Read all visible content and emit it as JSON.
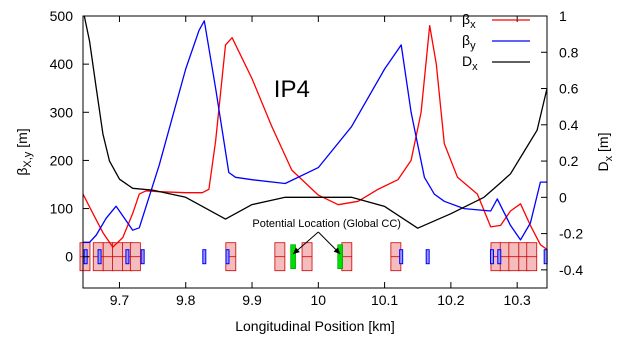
{
  "chart_data": {
    "type": "line",
    "annotation_label": "IP4",
    "xlabel": "Longitudinal Position [km]",
    "ylabel_left": {
      "main": "β",
      "sub": "X,y",
      "unit": " [m]"
    },
    "ylabel_right": {
      "main": "D",
      "sub": "x",
      "unit": " [m]"
    },
    "xlim": [
      9.645,
      10.345
    ],
    "ylim_left": [
      -65,
      500
    ],
    "ylim_right": [
      -0.5,
      1.0
    ],
    "x_ticks": [
      9.7,
      9.8,
      9.9,
      10.0,
      10.1,
      10.2,
      10.3
    ],
    "x_tick_labels": [
      "9.7",
      "9.8",
      "9.9",
      "10",
      "10.1",
      "10.2",
      "10.3"
    ],
    "y_left_ticks": [
      0,
      100,
      200,
      300,
      400,
      500
    ],
    "y_left_tick_labels": [
      "0",
      "100",
      "200",
      "300",
      "400",
      "500"
    ],
    "y_right_ticks": [
      -0.4,
      -0.2,
      0,
      0.2,
      0.4,
      0.6,
      0.8,
      1.0
    ],
    "y_right_tick_labels": [
      "-0.4",
      "-0.2",
      "0",
      "0.2",
      "0.4",
      "0.6",
      "0.8",
      "1"
    ],
    "grid": false,
    "legend_placement": "top-right",
    "series": [
      {
        "name": "β",
        "name_sub": "x",
        "color": "#ff0000",
        "axis": "left",
        "x": [
          9.645,
          9.66,
          9.675,
          9.69,
          9.705,
          9.72,
          9.73,
          9.74,
          9.76,
          9.8,
          9.825,
          9.835,
          9.845,
          9.86,
          9.87,
          9.9,
          9.93,
          9.96,
          10.0,
          10.03,
          10.06,
          10.09,
          10.12,
          10.14,
          10.155,
          10.168,
          10.178,
          10.19,
          10.21,
          10.24,
          10.26,
          10.275,
          10.29,
          10.305,
          10.32,
          10.335,
          10.345
        ],
        "y": [
          130,
          90,
          50,
          20,
          40,
          90,
          130,
          137,
          135,
          133,
          133,
          140,
          240,
          440,
          455,
          370,
          270,
          180,
          128,
          108,
          115,
          140,
          160,
          200,
          300,
          480,
          400,
          235,
          165,
          130,
          62,
          65,
          95,
          110,
          65,
          25,
          15
        ]
      },
      {
        "name": "β",
        "name_sub": "y",
        "color": "#0000ff",
        "axis": "left",
        "x": [
          9.645,
          9.655,
          9.665,
          9.68,
          9.695,
          9.71,
          9.72,
          9.73,
          9.76,
          9.8,
          9.82,
          9.828,
          9.845,
          9.865,
          9.875,
          9.9,
          9.95,
          10.0,
          10.05,
          10.1,
          10.12,
          10.125,
          10.14,
          10.16,
          10.175,
          10.19,
          10.22,
          10.26,
          10.27,
          10.29,
          10.305,
          10.32,
          10.335,
          10.345
        ],
        "y": [
          30,
          30,
          45,
          80,
          105,
          75,
          55,
          60,
          190,
          390,
          470,
          490,
          350,
          175,
          165,
          160,
          152,
          185,
          270,
          390,
          430,
          440,
          300,
          165,
          130,
          115,
          100,
          95,
          120,
          65,
          35,
          70,
          155,
          155
        ]
      },
      {
        "name": "D",
        "name_sub": "x",
        "color": "#000000",
        "axis": "right",
        "x": [
          9.647,
          9.655,
          9.665,
          9.675,
          9.685,
          9.7,
          9.72,
          9.75,
          9.8,
          9.86,
          9.9,
          9.95,
          10.0,
          10.05,
          10.1,
          10.15,
          10.2,
          10.25,
          10.275,
          10.29,
          10.31,
          10.33,
          10.345
        ],
        "y": [
          1.0,
          0.86,
          0.6,
          0.35,
          0.2,
          0.1,
          0.05,
          0.04,
          0.0,
          -0.12,
          -0.04,
          0.0,
          0.0,
          0.0,
          -0.05,
          -0.17,
          -0.09,
          0.0,
          0.08,
          0.13,
          0.25,
          0.37,
          0.6
        ]
      }
    ],
    "arrow_annotation": {
      "text": "Potential Location (Global CC)",
      "arrow_targets_x": [
        9.962,
        10.033
      ]
    },
    "lattice": {
      "dipoles_color": "#f4bcbc",
      "dipoles": [
        9.648,
        9.668,
        9.683,
        9.697,
        9.712,
        9.724,
        9.868,
        9.942,
        9.983,
        10.043,
        10.117,
        10.268,
        10.282,
        10.295,
        10.31,
        10.322
      ],
      "quads_color": "#0000ff",
      "quads": [
        9.649,
        9.67,
        9.712,
        9.735,
        9.828,
        9.863,
        10.125,
        10.165,
        10.262,
        10.273,
        10.343
      ],
      "crabs_color": "#00dd00",
      "crabs": [
        9.962,
        10.033
      ]
    }
  }
}
